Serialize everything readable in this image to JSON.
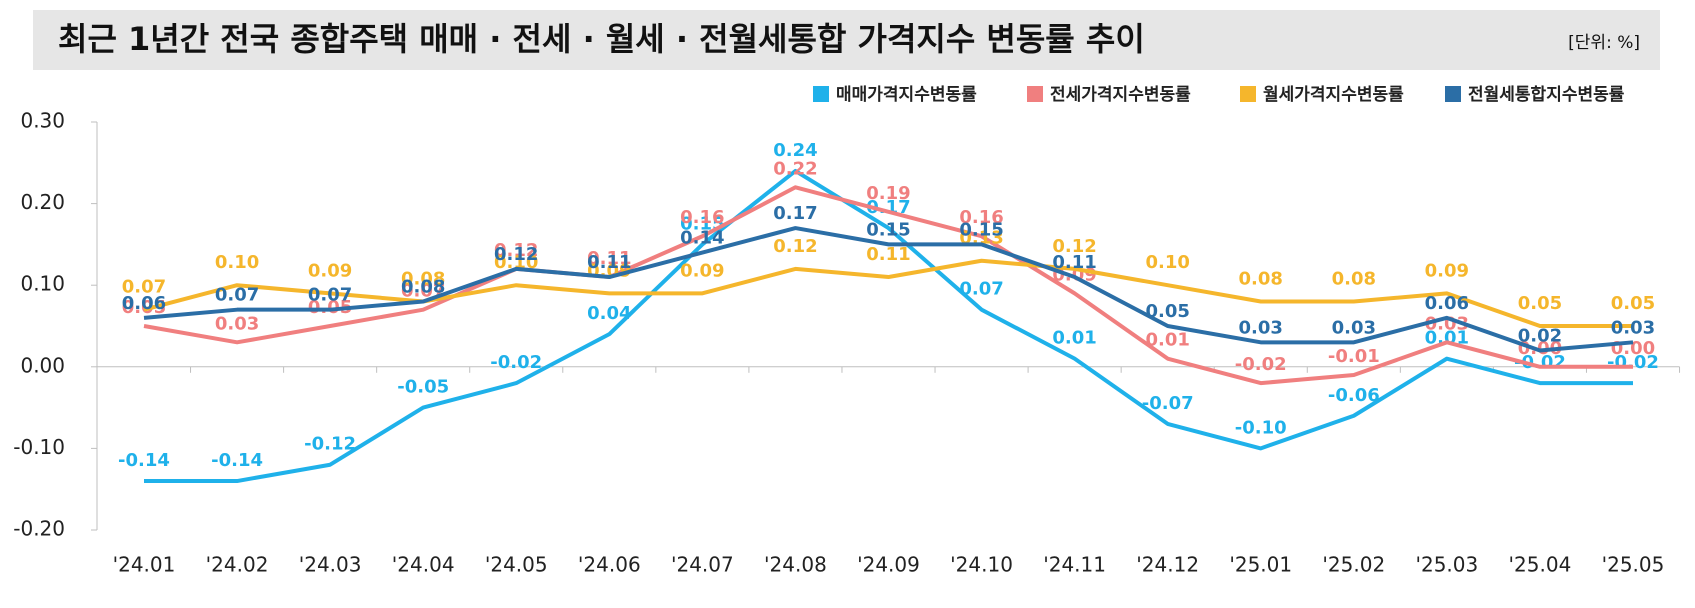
{
  "chart_data": {
    "type": "line",
    "title": "최근 1년간 전국 종합주택 매매 · 전세 · 월세 · 전월세통합 가격지수 변동률 추이",
    "unit": "[단위: %]",
    "categories": [
      "'24.01",
      "'24.02",
      "'24.03",
      "'24.04",
      "'24.05",
      "'24.06",
      "'24.07",
      "'24.08",
      "'24.09",
      "'24.10",
      "'24.11",
      "'24.12",
      "'25.01",
      "'25.02",
      "'25.03",
      "'25.04",
      "'25.05"
    ],
    "ylim": [
      -0.2,
      0.3
    ],
    "yticks": [
      {
        "value": -0.2,
        "label": "-0.20"
      },
      {
        "value": -0.1,
        "label": "-0.10"
      },
      {
        "value": 0,
        "label": "0.00"
      },
      {
        "value": 0.1,
        "label": "0.10"
      },
      {
        "value": 0.2,
        "label": "0.20"
      },
      {
        "value": 0.3,
        "label": "0.30"
      }
    ],
    "grid": false,
    "legend": "top-right",
    "series": [
      {
        "name": "매매가격지수변동률",
        "color": "#1fb1ea",
        "values": [
          -0.14,
          -0.14,
          -0.12,
          -0.05,
          -0.02,
          0.04,
          0.15,
          0.24,
          0.17,
          0.07,
          0.01,
          -0.07,
          -0.1,
          -0.06,
          0.01,
          -0.02,
          -0.02
        ],
        "value_labels": [
          "-0.14",
          "-0.14",
          "-0.12",
          "-0.05",
          "-0.02",
          "0.04",
          "0.15",
          "0.24",
          "0.17",
          "0.07",
          "0.01",
          "-0.07",
          "-0.10",
          "-0.06",
          "0.01",
          "-0.02",
          "-0.02"
        ]
      },
      {
        "name": "전세가격지수변동률",
        "color": "#f07f7f",
        "values": [
          0.05,
          0.03,
          0.05,
          0.07,
          0.12,
          0.11,
          0.16,
          0.22,
          0.19,
          0.16,
          0.09,
          0.01,
          -0.02,
          -0.01,
          0.03,
          0,
          0
        ],
        "value_labels": [
          "0.05",
          "0.03",
          "0.05",
          "0.07",
          "0.12",
          "0.11",
          "0.16",
          "0.22",
          "0.19",
          "0.16",
          "0.09",
          "0.01",
          "-0.02",
          "-0.01",
          "0.03",
          "0.00",
          "0.00"
        ]
      },
      {
        "name": "월세가격지수변동률",
        "color": "#f5b62c",
        "values": [
          0.07,
          0.1,
          0.09,
          0.08,
          0.1,
          0.09,
          0.09,
          0.12,
          0.11,
          0.13,
          0.12,
          0.1,
          0.08,
          0.08,
          0.09,
          0.05,
          0.05
        ],
        "value_labels": [
          "0.07",
          "0.10",
          "0.09",
          "0.08",
          "0.10",
          "0.09",
          "0.09",
          "0.12",
          "0.11",
          "0.13",
          "0.12",
          "0.10",
          "0.08",
          "0.08",
          "0.09",
          "0.05",
          "0.05"
        ]
      },
      {
        "name": "전월세통합지수변동률",
        "color": "#2b6ea6",
        "values": [
          0.06,
          0.07,
          0.07,
          0.08,
          0.12,
          0.11,
          0.14,
          0.17,
          0.15,
          0.15,
          0.11,
          0.05,
          0.03,
          0.03,
          0.06,
          0.02,
          0.03
        ],
        "value_labels": [
          "0.06",
          "0.07",
          "0.07",
          "0.08",
          "0.12",
          "0.11",
          "0.14",
          "0.17",
          "0.15",
          "0.15",
          "0.11",
          "0.05",
          "0.03",
          "0.03",
          "0.06",
          "0.02",
          "0.03"
        ]
      }
    ]
  }
}
